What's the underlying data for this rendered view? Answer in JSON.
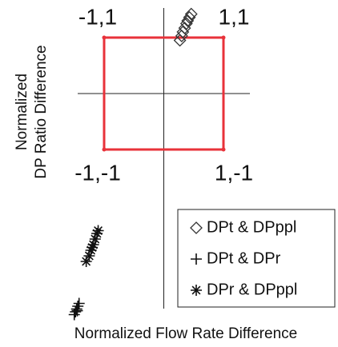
{
  "chart_data": {
    "type": "scatter",
    "xlabel": "Normalized Flow Rate Difference",
    "ylabel": [
      "Normalized",
      "DP Ratio Difference"
    ],
    "xlim": [
      -1.5,
      1.5
    ],
    "ylim": [
      -4,
      1.6
    ],
    "square": {
      "color": "#e8323a",
      "corners": [
        {
          "label": "-1,1",
          "x": -1,
          "y": 1
        },
        {
          "label": "1,1",
          "x": 1,
          "y": 1
        },
        {
          "label": "1,-1",
          "x": 1,
          "y": -1
        },
        {
          "label": "-1,-1",
          "x": -1,
          "y": -1
        }
      ]
    },
    "series": [
      {
        "name": "DPt & DPppl",
        "marker": "diamond",
        "color": "#333333",
        "x": [
          0.27,
          0.3,
          0.32,
          0.35,
          0.38,
          0.4,
          0.43,
          0.46
        ],
        "values": [
          0.95,
          1.03,
          1.1,
          1.17,
          1.25,
          1.3,
          1.36,
          1.42
        ]
      },
      {
        "name": "DPt & DPr",
        "marker": "plus",
        "color": "#111111",
        "x": [
          -1.5,
          -1.48,
          -1.46,
          -1.44,
          -1.42,
          -1.45
        ],
        "values": [
          -3.95,
          -3.9,
          -3.85,
          -3.8,
          -3.75,
          -3.88
        ]
      },
      {
        "name": "DPr & DPppl",
        "marker": "asterisk",
        "color": "#111111",
        "x": [
          -1.3,
          -1.25,
          -1.22,
          -1.18,
          -1.15,
          -1.12,
          -1.1,
          -1.2
        ],
        "values": [
          -3.0,
          -2.9,
          -2.8,
          -2.7,
          -2.6,
          -2.5,
          -2.45,
          -2.75
        ]
      }
    ]
  }
}
